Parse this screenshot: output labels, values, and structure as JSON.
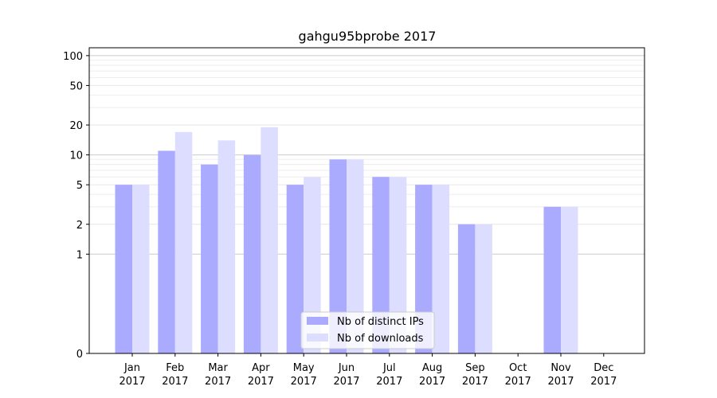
{
  "chart_data": {
    "type": "bar",
    "title": "gahgu95bprobe 2017",
    "xlabel": "",
    "ylabel": "",
    "scale": "symlog",
    "categories": [
      [
        "Jan",
        "2017"
      ],
      [
        "Feb",
        "2017"
      ],
      [
        "Mar",
        "2017"
      ],
      [
        "Apr",
        "2017"
      ],
      [
        "May",
        "2017"
      ],
      [
        "Jun",
        "2017"
      ],
      [
        "Jul",
        "2017"
      ],
      [
        "Aug",
        "2017"
      ],
      [
        "Sep",
        "2017"
      ],
      [
        "Oct",
        "2017"
      ],
      [
        "Nov",
        "2017"
      ],
      [
        "Dec",
        "2017"
      ]
    ],
    "series": [
      {
        "name": "Nb of distinct IPs",
        "color": "#aaaaff",
        "values": [
          5,
          11,
          8,
          10,
          5,
          9,
          6,
          5,
          2,
          0,
          3,
          0
        ]
      },
      {
        "name": "Nb of downloads",
        "color": "#ddddff",
        "values": [
          5,
          17,
          14,
          19,
          6,
          9,
          6,
          5,
          2,
          0,
          3,
          0
        ]
      }
    ],
    "yticks": [
      0,
      1,
      2,
      5,
      10,
      20,
      50,
      100
    ],
    "ylim": [
      0,
      120
    ],
    "legend_position": "lower-center",
    "grid": true
  }
}
